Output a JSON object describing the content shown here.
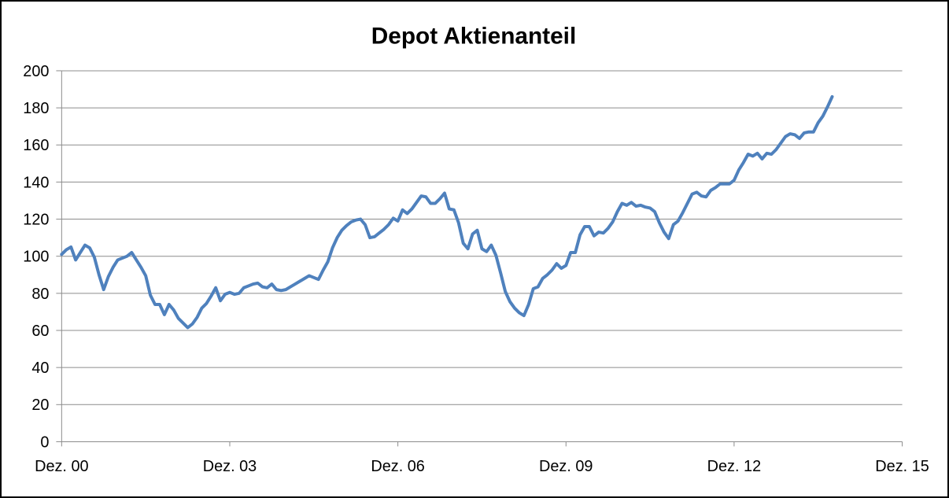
{
  "window": {
    "background": "#FFFFFF",
    "border_color": "#000000"
  },
  "chart_data": {
    "type": "line",
    "title": "Depot Aktienanteil",
    "xlabel": "",
    "ylabel": "",
    "legend": "none",
    "grid": "horizontal",
    "gridline_color": "#8C8C8C",
    "axis_color": "#8C8C8C",
    "ylim": [
      0,
      200
    ],
    "y_ticks": [
      0,
      20,
      40,
      60,
      80,
      100,
      120,
      140,
      160,
      180,
      200
    ],
    "y_tick_labels": [
      "0",
      "20",
      "40",
      "60",
      "80",
      "100",
      "120",
      "140",
      "160",
      "180",
      "200"
    ],
    "x_tick_labels": [
      "Dez. 00",
      "Dez. 03",
      "Dez. 06",
      "Dez. 09",
      "Dez. 12",
      "Dez. 15"
    ],
    "x_start_label": "Dez. 00",
    "x_points_per_tick": 36,
    "x_interval": "monthly",
    "series": [
      {
        "name": "Depot Aktienanteil",
        "color": "#4F81BD",
        "stroke_width": 4,
        "values": [
          101,
          103.5,
          105,
          98,
          102,
          106,
          104.5,
          99.5,
          90,
          82,
          89,
          94,
          98,
          99,
          100,
          102,
          98,
          94,
          89.5,
          79,
          74,
          74,
          68.5,
          74,
          71,
          66.5,
          64,
          61.5,
          63.5,
          67,
          72,
          74.5,
          78.5,
          83,
          76,
          79.5,
          80.5,
          79.5,
          80,
          83,
          84,
          85,
          85.5,
          83.5,
          83,
          85,
          82,
          81.5,
          82,
          83.5,
          85,
          86.5,
          88,
          89.5,
          88.5,
          87.5,
          92.5,
          97,
          104.5,
          110,
          114,
          116.5,
          118.5,
          119.5,
          120,
          117,
          110,
          110.5,
          112.5,
          114.5,
          117,
          120.5,
          119,
          125,
          123,
          125.5,
          129,
          132.5,
          132,
          128.5,
          128.5,
          131,
          134,
          125.5,
          125,
          118,
          107,
          104,
          112,
          114,
          104,
          102.5,
          106,
          100.5,
          91,
          81,
          75.5,
          72,
          69.5,
          68,
          74,
          82.5,
          83.5,
          88,
          90,
          92.5,
          96,
          93.5,
          95,
          102,
          102,
          111.5,
          116,
          116,
          111,
          113,
          112.5,
          115,
          118.5,
          124,
          128.5,
          127.5,
          129,
          127,
          127.5,
          126.5,
          126,
          124,
          118,
          113,
          109.5,
          117,
          119,
          123.5,
          128.5,
          133.5,
          134.5,
          132.5,
          132,
          135.5,
          137,
          139,
          139,
          139,
          141,
          146.5,
          150.5,
          155,
          154,
          155.5,
          152.5,
          155.5,
          155,
          157.5,
          161,
          164.5,
          166,
          165.5,
          163.5,
          166.5,
          167,
          167,
          172,
          175.5,
          180.5,
          186
        ]
      }
    ]
  }
}
